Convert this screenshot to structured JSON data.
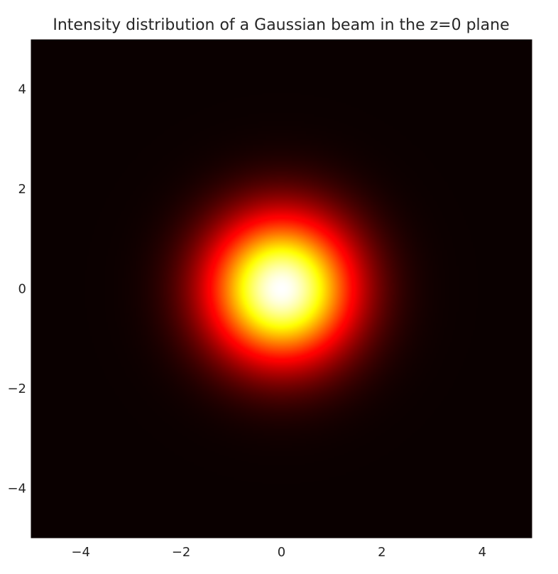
{
  "chart_data": {
    "type": "heatmap",
    "title": "Intensity distribution of a Gaussian beam in the z=0 plane",
    "xlabel": "",
    "ylabel": "",
    "xlim": [
      -5,
      5
    ],
    "ylim": [
      -5,
      5
    ],
    "x_ticks": [
      -4,
      -2,
      0,
      2,
      4
    ],
    "y_ticks": [
      4,
      2,
      0,
      -2,
      -4
    ],
    "x_tick_labels": [
      "−4",
      "−2",
      "0",
      "2",
      "4"
    ],
    "y_tick_labels": [
      "4",
      "2",
      "0",
      "−2",
      "−4"
    ],
    "colormap": "hot",
    "colormap_stops": [
      "#0a0000",
      "#ff0000",
      "#ffff00",
      "#ffffff"
    ],
    "gaussian": {
      "x0": 0,
      "y0": 0,
      "sigma": 1.0,
      "peak": 1.0
    },
    "grid": false,
    "legend": "none"
  }
}
